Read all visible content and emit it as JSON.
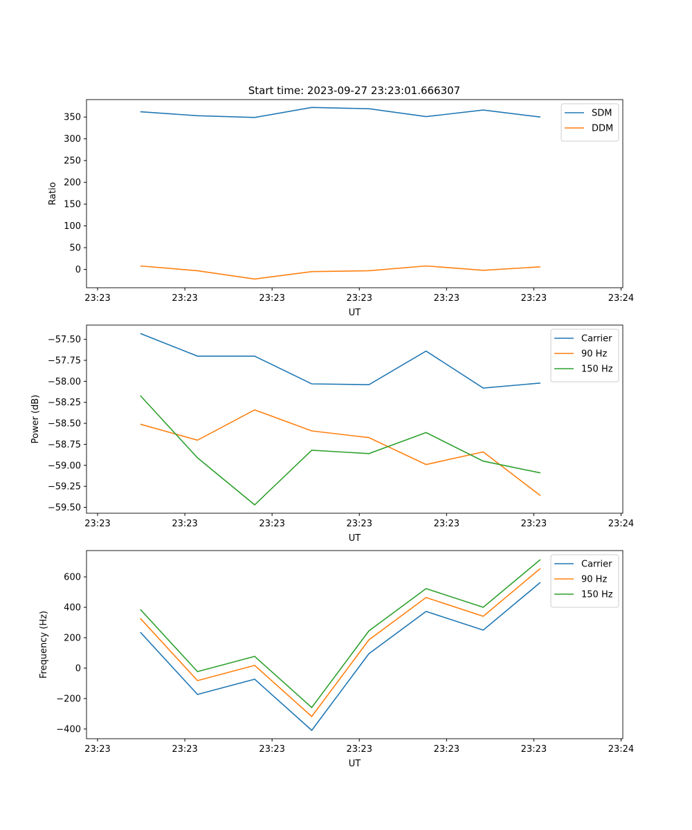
{
  "chart_data": {
    "title": "Start time: 2023-09-27 23:23:01.666307",
    "xlabel": "UT",
    "x_tick_values": [
      0,
      10,
      20,
      30,
      40,
      50,
      60
    ],
    "x_tick_labels": [
      "23:23",
      "23:23",
      "23:23",
      "23:23",
      "23:23",
      "23:23",
      "23:24"
    ],
    "xlim": [
      -1.27,
      60.2
    ],
    "x": [
      4.9,
      11.45,
      18.0,
      24.55,
      31.1,
      37.65,
      44.2,
      50.75
    ],
    "colors": {
      "blue": "#1f77b4",
      "orange": "#ff7f0e",
      "green": "#2ca02c"
    },
    "subplots": [
      {
        "type": "line",
        "ylabel": "Ratio",
        "ylim": [
          -42,
          390
        ],
        "y_ticks": [
          0,
          50,
          100,
          150,
          200,
          250,
          300,
          350
        ],
        "y_tick_labels": [
          "0",
          "50",
          "100",
          "150",
          "200",
          "250",
          "300",
          "350"
        ],
        "legend": "top-right",
        "series": [
          {
            "name": "SDM",
            "color": "#1f77b4",
            "values": [
              362,
              353,
              349,
              372,
              369,
              351,
              366,
              350
            ]
          },
          {
            "name": "DDM",
            "color": "#ff7f0e",
            "values": [
              8,
              -3,
              -22,
              -5,
              -3,
              8,
              -2,
              6
            ]
          }
        ]
      },
      {
        "type": "line",
        "ylabel": "Power (dB)",
        "ylim": [
          -59.57,
          -57.33
        ],
        "y_ticks": [
          -57.5,
          -57.75,
          -58.0,
          -58.25,
          -58.5,
          -58.75,
          -59.0,
          -59.25,
          -59.5
        ],
        "y_tick_labels": [
          "−57.50",
          "−57.75",
          "−58.00",
          "−58.25",
          "−58.50",
          "−58.75",
          "−59.00",
          "−59.25",
          "−59.50"
        ],
        "legend": "top-right",
        "series": [
          {
            "name": "Carrier",
            "color": "#1f77b4",
            "values": [
              -57.43,
              -57.7,
              -57.7,
              -58.03,
              -58.04,
              -57.64,
              -58.08,
              -58.02
            ]
          },
          {
            "name": "90 Hz",
            "color": "#ff7f0e",
            "values": [
              -58.51,
              -58.7,
              -58.34,
              -58.59,
              -58.67,
              -58.99,
              -58.84,
              -59.36
            ]
          },
          {
            "name": "150 Hz",
            "color": "#2ca02c",
            "values": [
              -58.17,
              -58.91,
              -59.47,
              -58.82,
              -58.86,
              -58.61,
              -58.95,
              -59.09
            ]
          }
        ]
      },
      {
        "type": "line",
        "ylabel": "Frequency (Hz)",
        "ylim": [
          -464,
          773
        ],
        "y_ticks": [
          -400,
          -200,
          0,
          200,
          400,
          600
        ],
        "y_tick_labels": [
          "−400",
          "−200",
          "0",
          "200",
          "400",
          "600"
        ],
        "legend": "top-right",
        "series": [
          {
            "name": "Carrier",
            "color": "#1f77b4",
            "values": [
              236,
              -173,
              -73,
              -409,
              95,
              373,
              250,
              564
            ]
          },
          {
            "name": "90 Hz",
            "color": "#ff7f0e",
            "values": [
              327,
              -82,
              18,
              -318,
              186,
              464,
              341,
              655
            ]
          },
          {
            "name": "150 Hz",
            "color": "#2ca02c",
            "values": [
              386,
              -23,
              77,
              -259,
              245,
              523,
              400,
              714
            ]
          }
        ]
      }
    ]
  }
}
